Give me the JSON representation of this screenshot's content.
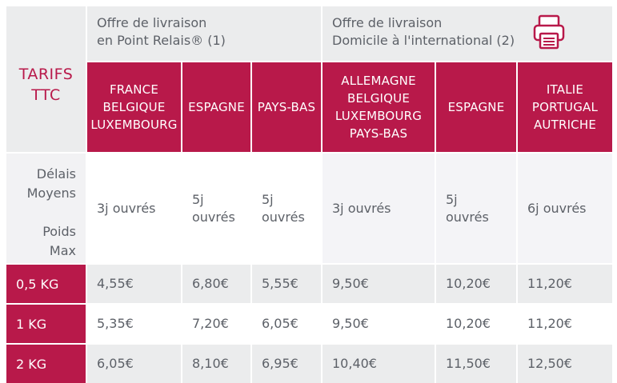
{
  "tarifs_label_line1": "TARIFS",
  "tarifs_label_line2": "TTC",
  "offers": {
    "relais_line1": "Offre de livraison",
    "relais_line2": "en Point Relais® (1)",
    "domicile_line1": "Offre de livraison",
    "domicile_line2": "Domicile à l'international (2)"
  },
  "columns": [
    [
      "FRANCE",
      "BELGIQUE",
      "LUXEMBOURG"
    ],
    [
      "ESPAGNE"
    ],
    [
      "PAYS-BAS"
    ],
    [
      "ALLEMAGNE",
      "BELGIQUE",
      "LUXEMBOURG",
      "PAYS-BAS"
    ],
    [
      "ESPAGNE"
    ],
    [
      "ITALIE",
      "PORTUGAL",
      "AUTRICHE"
    ]
  ],
  "delais_label": [
    "Délais",
    "Moyens"
  ],
  "poids_label": [
    "Poids",
    "Max"
  ],
  "delais": [
    [
      "3j ouvrés"
    ],
    [
      "5j",
      "ouvrés"
    ],
    [
      "5j",
      "ouvrés"
    ],
    [
      "3j ouvrés"
    ],
    [
      "5j",
      "ouvrés"
    ],
    [
      "6j ouvrés"
    ]
  ],
  "rows": [
    {
      "weight": "0,5 KG",
      "prices": [
        "4,55€",
        "6,80€",
        "5,55€",
        "9,50€",
        "10,20€",
        "11,20€"
      ]
    },
    {
      "weight": "1 KG",
      "prices": [
        "5,35€",
        "7,20€",
        "6,05€",
        "9,50€",
        "10,20€",
        "11,20€"
      ]
    },
    {
      "weight": "2 KG",
      "prices": [
        "6,05€",
        "8,10€",
        "6,95€",
        "10,40€",
        "11,50€",
        "12,50€"
      ]
    }
  ],
  "colors": {
    "accent": "#b8194a",
    "header_bg": "#ebeced"
  },
  "icons": {
    "print": "printer-icon"
  }
}
